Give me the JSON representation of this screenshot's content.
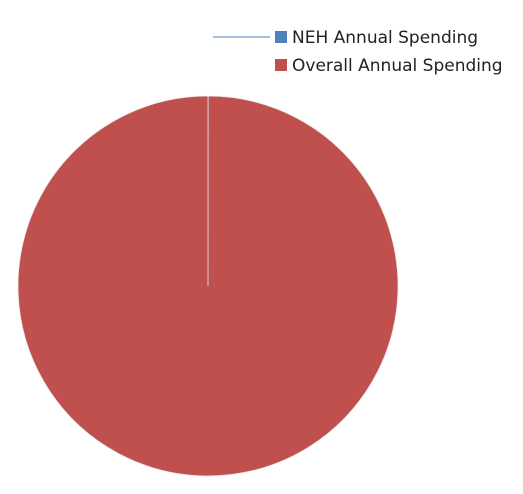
{
  "chart_data": {
    "type": "pie",
    "categories": [
      "NEH Annual Spending",
      "Overall Annual Spending"
    ],
    "values": [
      0.01,
      99.99
    ],
    "colors": [
      "#4f81bd",
      "#c0504d"
    ],
    "legend": "top-right"
  }
}
